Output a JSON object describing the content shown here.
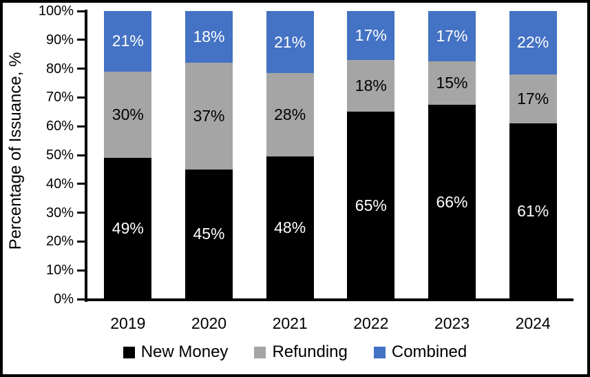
{
  "figure": {
    "background": "#FFFFFF",
    "border_color": "#000000"
  },
  "chart_data": {
    "type": "bar",
    "subtype": "stacked-100",
    "title": "",
    "xlabel": "",
    "ylabel": "Percentage of Issuance, %",
    "categories": [
      "2019",
      "2020",
      "2021",
      "2022",
      "2023",
      "2024"
    ],
    "series": [
      {
        "name": "New Money",
        "color": "#000000",
        "label_color": "#FFFFFF",
        "values": [
          49,
          45,
          48,
          65,
          66,
          61
        ]
      },
      {
        "name": "Refunding",
        "color": "#A5A5A5",
        "label_color": "#000000",
        "values": [
          30,
          37,
          28,
          18,
          15,
          17
        ]
      },
      {
        "name": "Combined",
        "color": "#4472C4",
        "label_color": "#FFFFFF",
        "values": [
          21,
          18,
          21,
          17,
          17,
          22
        ]
      }
    ],
    "value_suffix": "%",
    "y_ticks": [
      "0%",
      "10%",
      "20%",
      "30%",
      "40%",
      "50%",
      "60%",
      "70%",
      "80%",
      "90%",
      "100%"
    ],
    "ylim": [
      0,
      100
    ],
    "grid": false,
    "legend_position": "bottom",
    "axis_color": "#000000"
  }
}
